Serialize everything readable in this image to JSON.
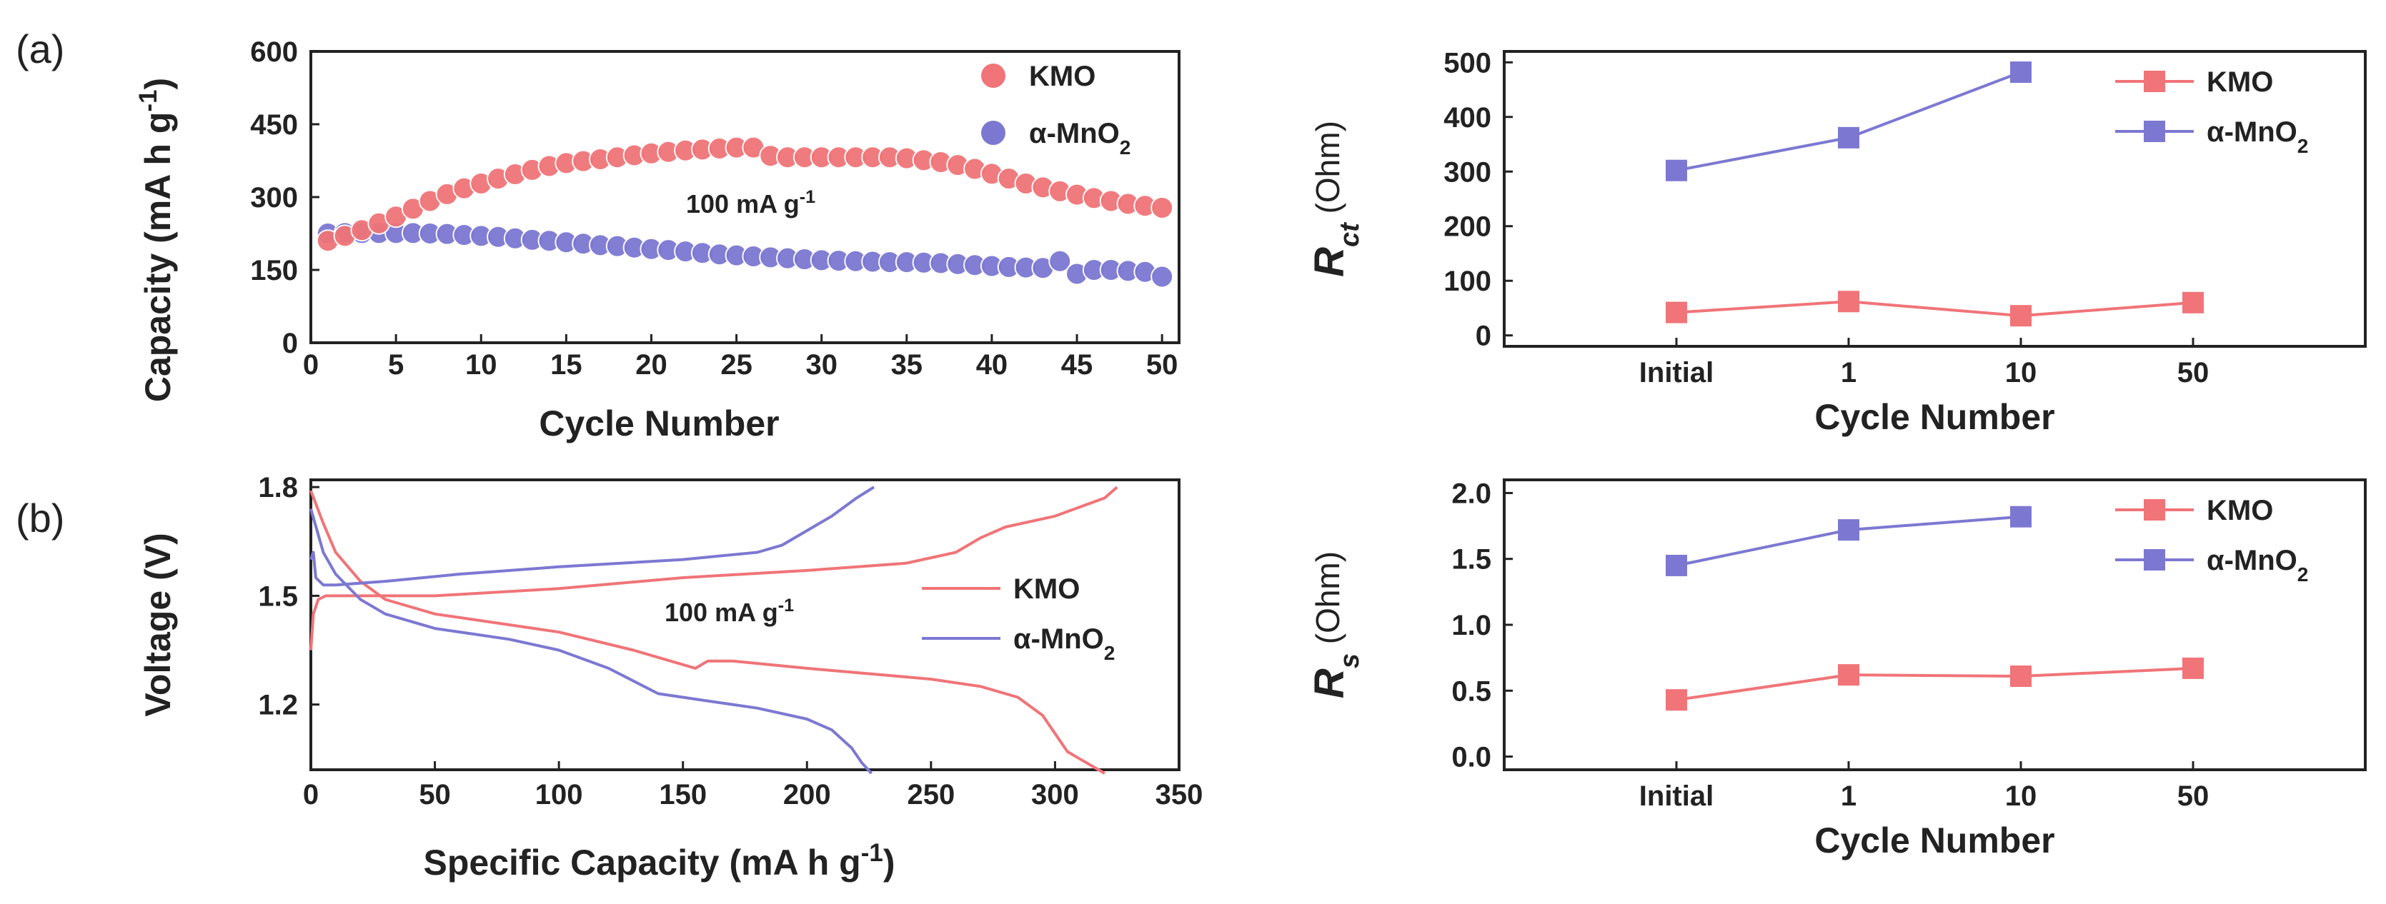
{
  "panel_labels": [
    "(a)",
    "(b)"
  ],
  "colors": {
    "kmo": "#f07478",
    "mno2": "#7c78d2",
    "axis": "#222222"
  },
  "chart_data": [
    {
      "id": "cap",
      "type": "scatter",
      "xlabel": "Cycle Number",
      "ylabel": "Capacity (mA h g-1)",
      "xlim": [
        0,
        51
      ],
      "ylim": [
        0,
        600
      ],
      "xticks": [
        0,
        5,
        10,
        15,
        20,
        25,
        30,
        35,
        40,
        45,
        50
      ],
      "yticks": [
        0,
        150,
        300,
        450,
        600
      ],
      "annotation": "100 mA g-1",
      "series": [
        {
          "name": "KMO",
          "color": "#f07478",
          "x": [
            1,
            2,
            3,
            4,
            5,
            6,
            7,
            8,
            9,
            10,
            11,
            12,
            13,
            14,
            15,
            16,
            17,
            18,
            19,
            20,
            21,
            22,
            23,
            24,
            25,
            26,
            27,
            28,
            29,
            30,
            31,
            32,
            33,
            34,
            35,
            36,
            37,
            38,
            39,
            40,
            41,
            42,
            43,
            44,
            45,
            46,
            47,
            48,
            49,
            50
          ],
          "y": [
            210,
            220,
            232,
            246,
            260,
            276,
            292,
            306,
            318,
            328,
            338,
            347,
            356,
            364,
            370,
            374,
            378,
            382,
            386,
            390,
            393,
            396,
            398,
            400,
            402,
            402,
            385,
            382,
            382,
            382,
            382,
            382,
            382,
            382,
            380,
            376,
            372,
            366,
            358,
            348,
            338,
            328,
            320,
            312,
            305,
            298,
            292,
            286,
            282,
            278
          ]
        },
        {
          "name": "α-MnO2",
          "color": "#7c78d2",
          "x": [
            1,
            2,
            3,
            4,
            5,
            6,
            7,
            8,
            9,
            10,
            11,
            12,
            13,
            14,
            15,
            16,
            17,
            18,
            19,
            20,
            21,
            22,
            23,
            24,
            25,
            26,
            27,
            28,
            29,
            30,
            31,
            32,
            33,
            34,
            35,
            36,
            37,
            38,
            39,
            40,
            41,
            42,
            43,
            44,
            45,
            46,
            47,
            48,
            49,
            50
          ],
          "y": [
            225,
            226,
            226,
            226,
            226,
            226,
            225,
            224,
            222,
            220,
            218,
            215,
            212,
            210,
            207,
            204,
            201,
            199,
            196,
            193,
            191,
            188,
            185,
            182,
            180,
            178,
            176,
            174,
            172,
            170,
            169,
            168,
            167,
            166,
            166,
            165,
            164,
            162,
            160,
            158,
            156,
            155,
            154,
            168,
            142,
            150,
            150,
            148,
            146,
            136
          ]
        }
      ]
    },
    {
      "id": "volt",
      "type": "line",
      "xlabel": "Specific Capacity (mA h g-1)",
      "ylabel": "Voltage (V)",
      "xlim": [
        0,
        350
      ],
      "ylim": [
        1.02,
        1.82
      ],
      "xticks": [
        0,
        50,
        100,
        150,
        200,
        250,
        300,
        350
      ],
      "yticks": [
        1.2,
        1.5,
        1.8
      ],
      "annotation": "100 mA g-1",
      "series": [
        {
          "name": "KMO discharge",
          "legend": "KMO",
          "color": "#f07478",
          "x": [
            0,
            5,
            10,
            20,
            30,
            50,
            80,
            100,
            130,
            150,
            155,
            160,
            170,
            200,
            250,
            270,
            285,
            295,
            300,
            305,
            310,
            315,
            320
          ],
          "y": [
            1.79,
            1.7,
            1.62,
            1.54,
            1.49,
            1.45,
            1.42,
            1.4,
            1.35,
            1.31,
            1.3,
            1.32,
            1.32,
            1.3,
            1.27,
            1.25,
            1.22,
            1.17,
            1.12,
            1.07,
            1.05,
            1.03,
            1.01
          ]
        },
        {
          "name": "KMO charge",
          "legend": "",
          "color": "#f07478",
          "x": [
            0,
            1,
            3,
            6,
            10,
            20,
            50,
            100,
            150,
            200,
            240,
            260,
            270,
            280,
            300,
            320,
            325
          ],
          "y": [
            1.35,
            1.45,
            1.49,
            1.5,
            1.5,
            1.5,
            1.5,
            1.52,
            1.55,
            1.57,
            1.59,
            1.62,
            1.66,
            1.69,
            1.72,
            1.77,
            1.8
          ],
          "y_hidden": true
        },
        {
          "name": "α-MnO2 discharge",
          "legend": "α-MnO2",
          "color": "#7c78d2",
          "x": [
            0,
            5,
            10,
            20,
            30,
            50,
            80,
            100,
            120,
            140,
            160,
            180,
            200,
            210,
            218,
            222,
            226
          ],
          "y": [
            1.74,
            1.62,
            1.56,
            1.49,
            1.45,
            1.41,
            1.38,
            1.35,
            1.3,
            1.23,
            1.21,
            1.19,
            1.16,
            1.13,
            1.08,
            1.04,
            1.01
          ]
        },
        {
          "name": "α-MnO2 charge",
          "legend": "",
          "color": "#7c78d2",
          "x": [
            0,
            1,
            2,
            5,
            10,
            30,
            60,
            100,
            150,
            180,
            190,
            200,
            210,
            220,
            227
          ],
          "y": [
            1.6,
            1.62,
            1.55,
            1.53,
            1.53,
            1.54,
            1.56,
            1.58,
            1.6,
            1.62,
            1.64,
            1.68,
            1.72,
            1.77,
            1.8
          ]
        }
      ]
    },
    {
      "id": "rct",
      "type": "line",
      "xlabel": "Cycle Number",
      "ylabel": "Rct (Ohm)",
      "ylabel_main": "R",
      "ylabel_sub": "ct",
      "ylabel_unit": " (Ohm)",
      "categories": [
        "Initial",
        "1",
        "10",
        "50"
      ],
      "ylim": [
        -20,
        520
      ],
      "yticks": [
        0,
        100,
        200,
        300,
        400,
        500
      ],
      "series": [
        {
          "name": "KMO",
          "color": "#f07478",
          "values": [
            42,
            62,
            36,
            60
          ]
        },
        {
          "name": "α-MnO2",
          "color": "#7c78d2",
          "values": [
            302,
            362,
            482,
            null
          ]
        }
      ]
    },
    {
      "id": "rs",
      "type": "line",
      "xlabel": "Cycle Number",
      "ylabel": "Rs (Ohm)",
      "ylabel_main": "R",
      "ylabel_sub": "s",
      "ylabel_unit": " (Ohm)",
      "categories": [
        "Initial",
        "1",
        "10",
        "50"
      ],
      "ylim": [
        -0.1,
        2.1
      ],
      "yticks": [
        0.0,
        0.5,
        1.0,
        1.5,
        2.0
      ],
      "series": [
        {
          "name": "KMO",
          "color": "#f07478",
          "values": [
            0.43,
            0.62,
            0.61,
            0.67
          ]
        },
        {
          "name": "α-MnO2",
          "color": "#7c78d2",
          "values": [
            1.45,
            1.72,
            1.82,
            null
          ]
        }
      ]
    }
  ]
}
